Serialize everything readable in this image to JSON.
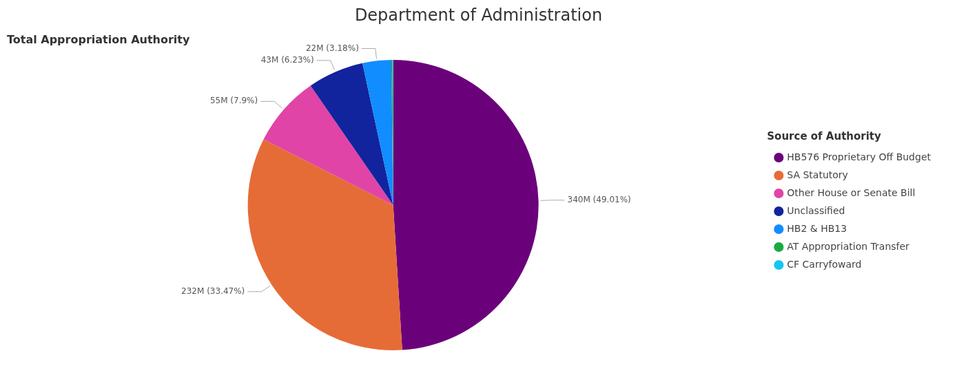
{
  "chart_data": {
    "type": "pie",
    "title": "Department of Administration",
    "subtitle": "Total Appropriation Authority",
    "legend_title": "Source of Authority",
    "categories": [
      "HB576 Proprietary Off Budget",
      "SA Statutory",
      "Other House or Senate Bill",
      "Unclassified",
      "HB2 & HB13",
      "AT Appropriation Transfer",
      "CF Carryfoward"
    ],
    "values": [
      49.01,
      33.47,
      7.9,
      6.23,
      3.18,
      0.14,
      0.07
    ],
    "colors": [
      "#6b007b",
      "#e66c37",
      "#e044a7",
      "#12239e",
      "#118dff",
      "#1aab40",
      "#15c6f4"
    ],
    "value_labels": [
      "340M (49.01%)",
      "232M (33.47%)",
      "55M (7.9%)",
      "43M (6.23%)",
      "22M (3.18%)",
      null,
      null
    ],
    "legend": "right"
  }
}
